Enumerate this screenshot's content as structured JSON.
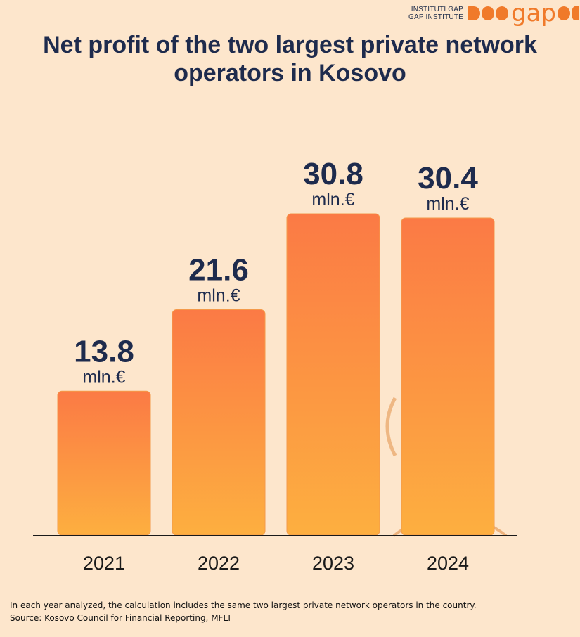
{
  "logo": {
    "line1": "INSTITUTI GAP",
    "line2": "GAP INSTITUTE",
    "word": "gap"
  },
  "colors": {
    "background": "#fde6cc",
    "bar_top": "#fb7a45",
    "bar_bottom": "#fdaf40",
    "text_dark": "#1e2b4d",
    "accent": "#f07a2a"
  },
  "chart_data": {
    "type": "bar",
    "title": "Net profit of the two largest private network operators in Kosovo",
    "categories": [
      "2021",
      "2022",
      "2023",
      "2024"
    ],
    "values": [
      13.8,
      21.6,
      30.8,
      30.4
    ],
    "value_labels": [
      "13.8",
      "21.6",
      "30.8",
      "30.4"
    ],
    "unit_label": "mln.€",
    "ylim": [
      0,
      36.6
    ],
    "grid": false,
    "legend": "none"
  },
  "footnote": {
    "line1": "In each year analyzed, the calculation includes the same two largest private network operators in the country.",
    "line2": "Source: Kosovo Council for Financial Reporting, MFLT"
  }
}
